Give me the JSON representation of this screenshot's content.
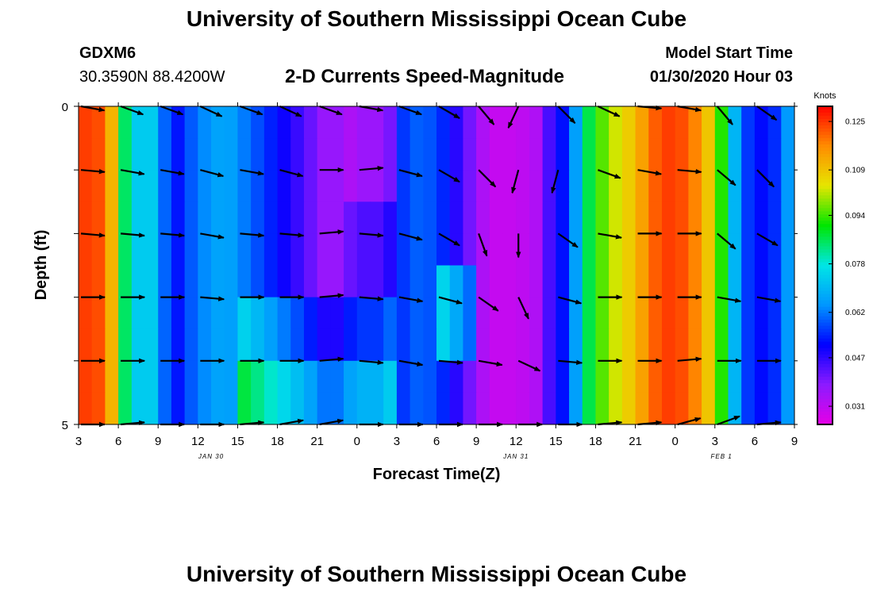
{
  "header": {
    "title": "University of Southern Mississippi Ocean Cube",
    "station": "GDXM6",
    "coords": "30.3590N 88.4200W",
    "subtitle": "2-D Currents Speed-Magnitude",
    "model_label": "Model Start Time",
    "model_time": "01/30/2020 Hour 03"
  },
  "footer": {
    "title": "University of Southern Mississippi Ocean Cube"
  },
  "colors": {
    "speed_stops": [
      "#e600e6",
      "#8c1aff",
      "#0000ff",
      "#0096ff",
      "#00e6e6",
      "#00e600",
      "#e6e600",
      "#ff8c00",
      "#ff0000"
    ]
  },
  "chart_data": {
    "type": "heatmap",
    "title": "2-D Currents Speed-Magnitude",
    "xlabel": "Forecast Time(Z)",
    "ylabel": "Depth (ft)",
    "x_ticks": [
      "3",
      "6",
      "9",
      "12",
      "15",
      "18",
      "21",
      "0",
      "3",
      "6",
      "9",
      "12",
      "15",
      "18",
      "21",
      "0",
      "3",
      "6",
      "9"
    ],
    "x_hours": [
      0,
      54
    ],
    "date_labels": [
      {
        "label": "JAN 30",
        "hour": 10
      },
      {
        "label": "JAN 31",
        "hour": 33
      },
      {
        "label": "FEB 1",
        "hour": 48.5
      }
    ],
    "ylim": [
      0,
      5
    ],
    "y_ticks": [
      "0",
      "5"
    ],
    "depth_rows": [
      0.25,
      0.75,
      1.25,
      1.75,
      2.25,
      2.75,
      3.25,
      3.75,
      4.25,
      4.75
    ],
    "colorbar": {
      "unit": "Knots",
      "range": [
        0.025,
        0.13
      ],
      "ticks": [
        "0.125",
        "0.109",
        "0.094",
        "0.078",
        "0.062",
        "0.047",
        "0.031"
      ]
    },
    "time_profile": [
      [
        0,
        0.125
      ],
      [
        2,
        0.122
      ],
      [
        3,
        0.1
      ],
      [
        4,
        0.07
      ],
      [
        5,
        0.076
      ],
      [
        6,
        0.07
      ],
      [
        7,
        0.05
      ],
      [
        9,
        0.062
      ],
      [
        11,
        0.068
      ],
      [
        13,
        0.06
      ],
      [
        15,
        0.052
      ],
      [
        17,
        0.044
      ],
      [
        19,
        0.034
      ],
      [
        21,
        0.044
      ],
      [
        23,
        0.044
      ],
      [
        25,
        0.06
      ],
      [
        27,
        0.058
      ],
      [
        29,
        0.044
      ],
      [
        31,
        0.03
      ],
      [
        33,
        0.03
      ],
      [
        35,
        0.034
      ],
      [
        36,
        0.055
      ],
      [
        37,
        0.05
      ],
      [
        38,
        0.082
      ],
      [
        40,
        0.1
      ],
      [
        42,
        0.11
      ],
      [
        44,
        0.125
      ],
      [
        46,
        0.122
      ],
      [
        48,
        0.104
      ],
      [
        50,
        0.058
      ],
      [
        52,
        0.05
      ],
      [
        54,
        0.07
      ]
    ],
    "depth_adjust": [
      {
        "hours": [
          12,
          24
        ],
        "depth": [
          4.0,
          5.0
        ],
        "delta": 0.025
      },
      {
        "hours": [
          12,
          24
        ],
        "depth": [
          3.0,
          4.0
        ],
        "delta": 0.012
      },
      {
        "hours": [
          20,
          24
        ],
        "depth": [
          0,
          1.5
        ],
        "delta": -0.008
      },
      {
        "hours": [
          27,
          30
        ],
        "depth": [
          2.5,
          4.0
        ],
        "delta": 0.02
      }
    ],
    "arrow_hours": [
      0,
      3,
      6,
      9,
      12,
      15,
      18,
      21,
      24,
      27,
      30,
      33,
      36,
      39,
      42,
      45,
      48,
      51
    ],
    "arrow_depths": [
      0,
      1,
      2,
      3,
      4,
      5
    ],
    "arrow_directions_deg": [
      [
        100,
        110,
        110,
        115,
        110,
        115,
        110,
        100,
        110,
        120,
        140,
        205,
        135,
        115,
        95,
        100,
        140,
        125
      ],
      [
        95,
        100,
        100,
        105,
        100,
        105,
        90,
        85,
        105,
        120,
        135,
        195,
        195,
        110,
        100,
        95,
        130,
        135
      ],
      [
        95,
        95,
        95,
        100,
        95,
        95,
        85,
        95,
        105,
        120,
        160,
        180,
        125,
        100,
        90,
        90,
        130,
        120
      ],
      [
        90,
        90,
        90,
        95,
        90,
        90,
        85,
        95,
        100,
        105,
        125,
        155,
        105,
        90,
        90,
        90,
        100,
        100
      ],
      [
        90,
        90,
        90,
        90,
        90,
        90,
        85,
        95,
        100,
        95,
        100,
        115,
        95,
        90,
        90,
        85,
        90,
        90
      ],
      [
        90,
        85,
        90,
        90,
        85,
        80,
        80,
        90,
        90,
        90,
        90,
        90,
        90,
        85,
        85,
        75,
        70,
        85
      ]
    ]
  }
}
